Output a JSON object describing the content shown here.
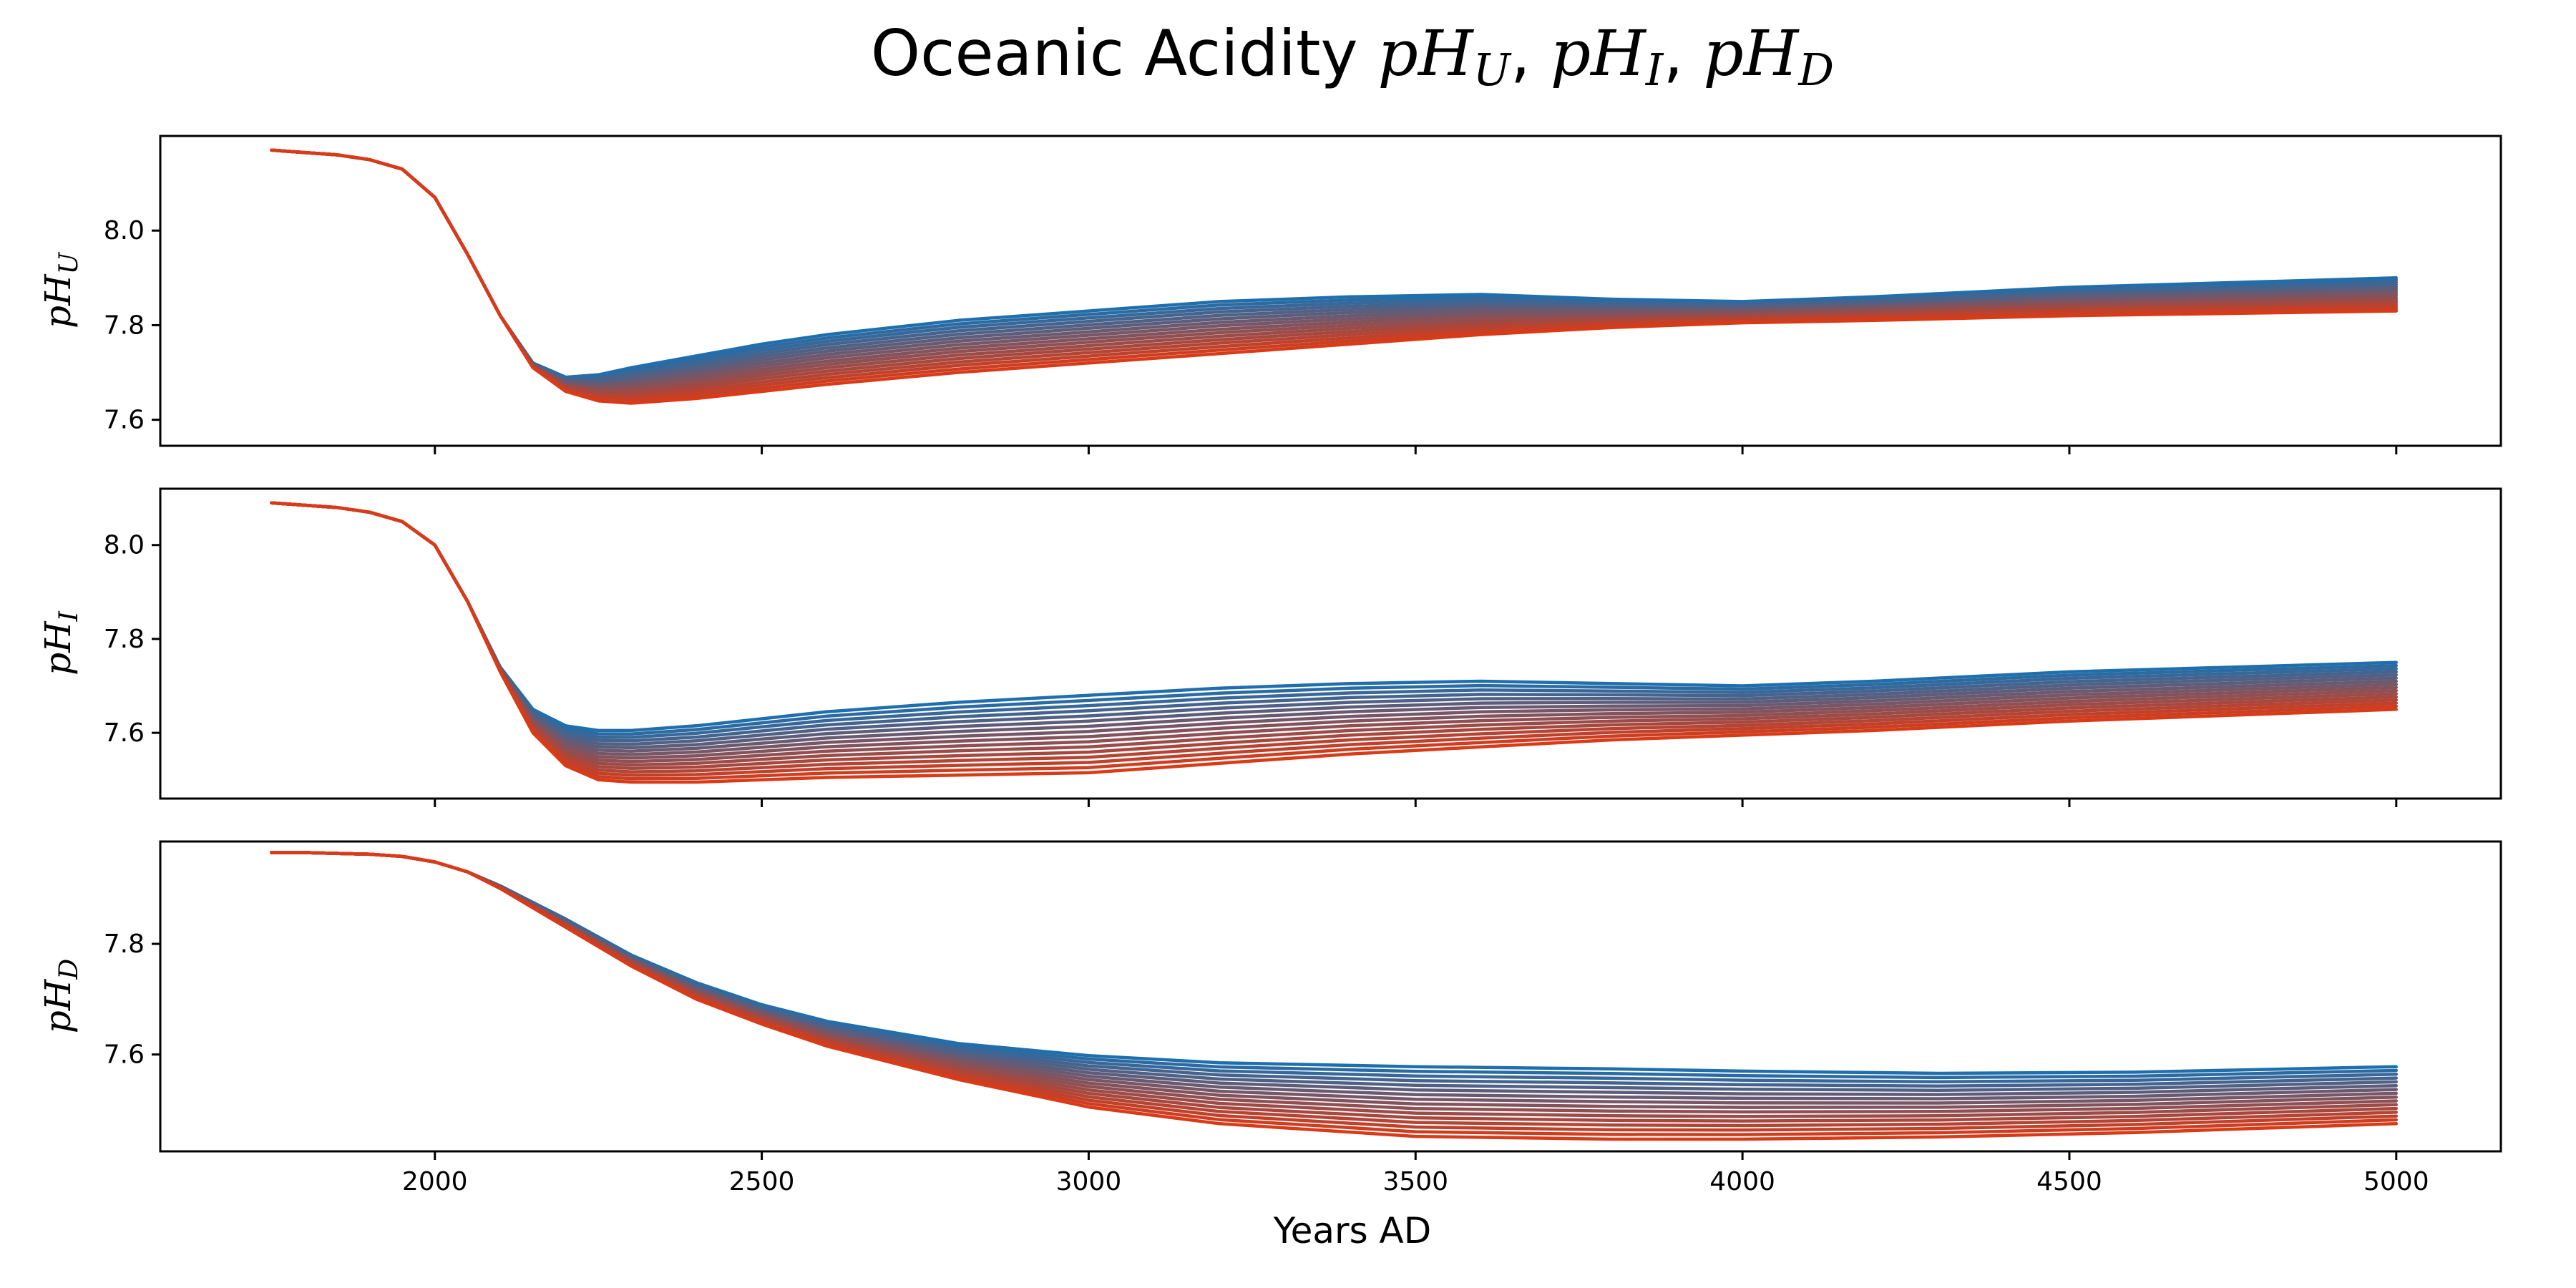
{
  "chart_data": [
    {
      "type": "line",
      "title_prefix": "Oceanic Acidity ",
      "title_math": "pH",
      "title_subscripts": [
        "U",
        "I",
        "D"
      ],
      "ylabel": "pH",
      "ylabel_subscript": "U",
      "xlim": [
        1580,
        5160
      ],
      "ylim": [
        7.545,
        8.2
      ],
      "yticks": [
        7.6,
        7.8,
        8.0
      ],
      "ytick_labels": [
        "7.6",
        "7.8",
        "8.0"
      ],
      "xticks": [
        2000,
        2500,
        3000,
        3500,
        4000,
        4500,
        5000
      ],
      "show_xtick_labels": false,
      "grid": false,
      "n_series": 16,
      "color_start": "#1f6fad",
      "color_end": "#d93a17",
      "x": [
        1750,
        1800,
        1850,
        1900,
        1950,
        2000,
        2050,
        2100,
        2150,
        2200,
        2250,
        2300,
        2400,
        2500,
        2600,
        2800,
        3000,
        3200,
        3400,
        3600,
        3800,
        4000,
        4200,
        4500,
        5000
      ],
      "series": [
        {
          "values": [
            8.17,
            8.165,
            8.16,
            8.15,
            8.13,
            8.07,
            7.95,
            7.82,
            7.72,
            7.69,
            7.695,
            7.71,
            7.735,
            7.76,
            7.78,
            7.81,
            7.83,
            7.85,
            7.86,
            7.865,
            7.855,
            7.85,
            7.86,
            7.88,
            7.9
          ]
        },
        {
          "values": [
            8.17,
            8.165,
            8.16,
            8.15,
            8.13,
            8.07,
            7.95,
            7.82,
            7.71,
            7.66,
            7.64,
            7.635,
            7.645,
            7.66,
            7.675,
            7.7,
            7.72,
            7.74,
            7.76,
            7.78,
            7.795,
            7.805,
            7.81,
            7.82,
            7.83
          ]
        }
      ]
    },
    {
      "type": "line",
      "ylabel": "pH",
      "ylabel_subscript": "I",
      "xlim": [
        1580,
        5160
      ],
      "ylim": [
        7.46,
        8.12
      ],
      "yticks": [
        7.6,
        7.8,
        8.0
      ],
      "ytick_labels": [
        "7.6",
        "7.8",
        "8.0"
      ],
      "xticks": [
        2000,
        2500,
        3000,
        3500,
        4000,
        4500,
        5000
      ],
      "show_xtick_labels": false,
      "grid": false,
      "n_series": 16,
      "color_start": "#1f6fad",
      "color_end": "#d93a17",
      "x": [
        1750,
        1800,
        1850,
        1900,
        1950,
        2000,
        2050,
        2100,
        2150,
        2200,
        2250,
        2300,
        2400,
        2500,
        2600,
        2800,
        3000,
        3200,
        3400,
        3600,
        3800,
        4000,
        4200,
        4500,
        5000
      ],
      "series": [
        {
          "values": [
            8.09,
            8.085,
            8.08,
            8.07,
            8.05,
            8.0,
            7.88,
            7.74,
            7.65,
            7.615,
            7.605,
            7.605,
            7.615,
            7.63,
            7.645,
            7.665,
            7.68,
            7.695,
            7.705,
            7.71,
            7.705,
            7.7,
            7.71,
            7.73,
            7.75
          ]
        },
        {
          "values": [
            8.09,
            8.085,
            8.08,
            8.07,
            8.05,
            8.0,
            7.88,
            7.73,
            7.6,
            7.53,
            7.5,
            7.495,
            7.495,
            7.5,
            7.505,
            7.51,
            7.515,
            7.535,
            7.555,
            7.57,
            7.585,
            7.595,
            7.605,
            7.625,
            7.65
          ]
        }
      ]
    },
    {
      "type": "line",
      "ylabel": "pH",
      "ylabel_subscript": "D",
      "xlabel": "Years AD",
      "xlim": [
        1580,
        5160
      ],
      "ylim": [
        7.425,
        7.985
      ],
      "yticks": [
        7.6,
        7.8
      ],
      "ytick_labels": [
        "7.6",
        "7.8"
      ],
      "xticks": [
        2000,
        2500,
        3000,
        3500,
        4000,
        4500,
        5000
      ],
      "xtick_labels": [
        "2000",
        "2500",
        "3000",
        "3500",
        "4000",
        "4500",
        "5000"
      ],
      "show_xtick_labels": true,
      "grid": false,
      "n_series": 16,
      "color_start": "#1f6fad",
      "color_end": "#d93a17",
      "x": [
        1750,
        1800,
        1900,
        1950,
        2000,
        2050,
        2100,
        2150,
        2200,
        2300,
        2400,
        2500,
        2600,
        2800,
        3000,
        3200,
        3500,
        3800,
        4000,
        4300,
        4600,
        5000
      ],
      "series": [
        {
          "values": [
            7.965,
            7.965,
            7.962,
            7.958,
            7.948,
            7.93,
            7.905,
            7.875,
            7.845,
            7.78,
            7.73,
            7.69,
            7.66,
            7.62,
            7.598,
            7.585,
            7.578,
            7.574,
            7.57,
            7.566,
            7.568,
            7.578
          ]
        },
        {
          "values": [
            7.965,
            7.965,
            7.962,
            7.958,
            7.948,
            7.93,
            7.9,
            7.865,
            7.83,
            7.76,
            7.7,
            7.655,
            7.615,
            7.555,
            7.505,
            7.475,
            7.452,
            7.447,
            7.447,
            7.451,
            7.459,
            7.475
          ]
        }
      ]
    }
  ]
}
